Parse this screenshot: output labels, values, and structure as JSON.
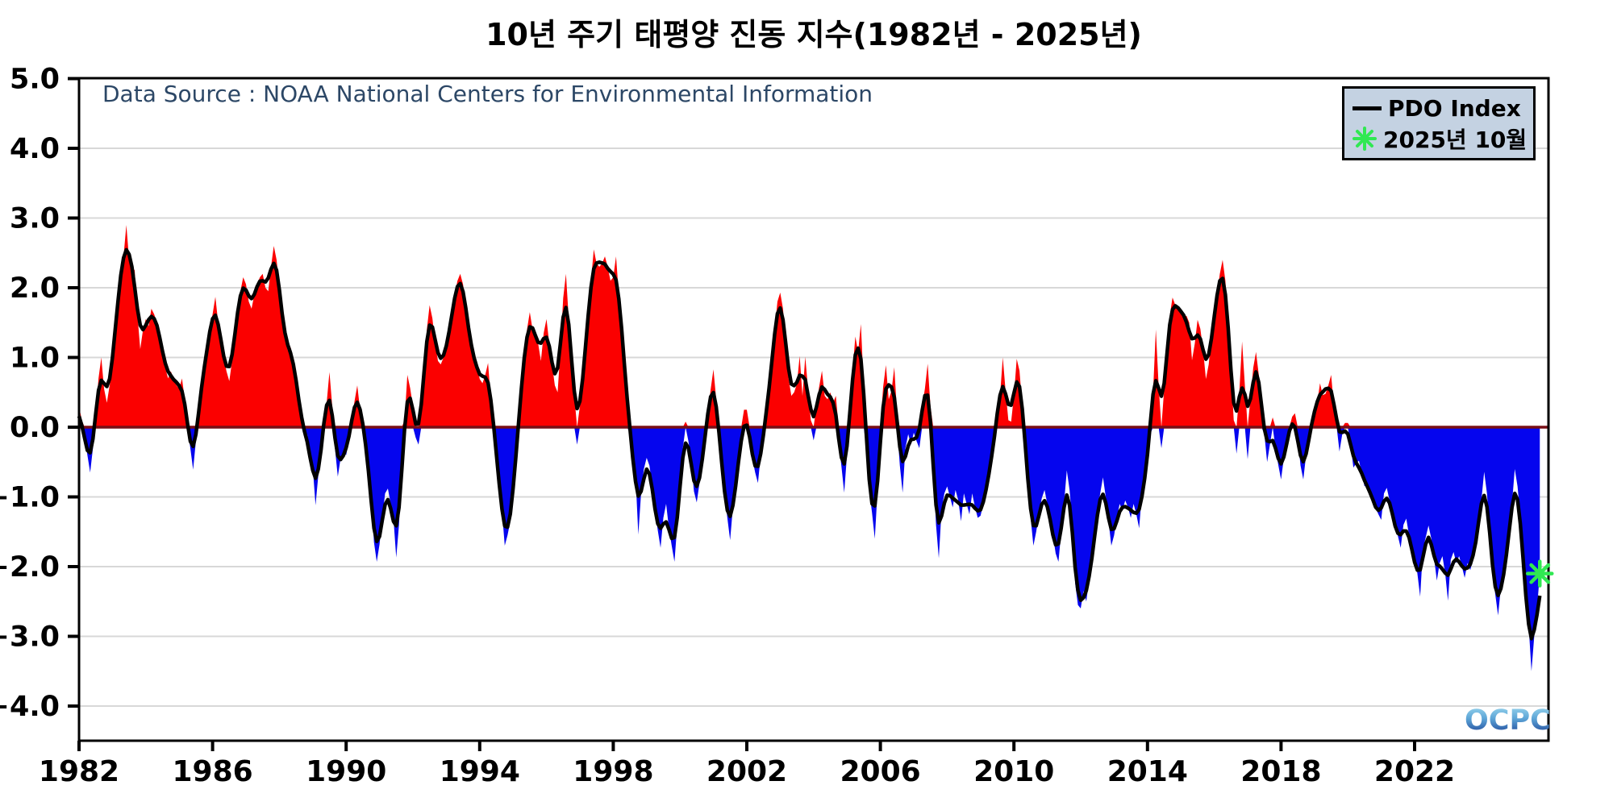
{
  "title": "10년 주기 태평양 진동 지수(1982년 - 2025년)",
  "annotations": {
    "data_source": "Data Source : NOAA National Centers for Environmental Information",
    "watermark": "OCPC"
  },
  "legend": {
    "line_label": "PDO Index",
    "marker_label": "2025년 10월"
  },
  "colors": {
    "positive_fill": "#fb0000",
    "negative_fill": "#0505ee",
    "line": "#000000",
    "zero_line": "#780f16",
    "marker_green": "#30e852",
    "legend_bg": "#c4d2e2",
    "source_text": "#2c4766",
    "grid": "#d8d8d8",
    "axis": "#000000"
  },
  "chart_data": {
    "type": "area",
    "title": "10년 주기 태평양 진동 지수(1982년 - 2025년)",
    "xlabel": "",
    "ylabel": "",
    "x_start": "1982-01",
    "x_end": "2025-10",
    "x_ticks": [
      1982,
      1986,
      1990,
      1994,
      1998,
      2002,
      2006,
      2010,
      2014,
      2018,
      2022
    ],
    "y_ticks": [
      {
        "v": 5,
        "label": "5.0"
      },
      {
        "v": 4,
        "label": "4.0"
      },
      {
        "v": 3,
        "label": "3.0"
      },
      {
        "v": 2,
        "label": "2.0"
      },
      {
        "v": 1,
        "label": "1.0"
      },
      {
        "v": 0,
        "label": "0.0"
      },
      {
        "v": -1,
        "label": "−1.0"
      },
      {
        "v": -2,
        "label": "−2.0"
      },
      {
        "v": -3,
        "label": "−3.0"
      },
      {
        "v": -4,
        "label": "−4.0"
      }
    ],
    "ylim": [
      -4.5,
      5.0
    ],
    "grid": true,
    "legend_position": "upper right",
    "last_point": {
      "label": "2025년 10월",
      "date": "2025-10",
      "value": -2.1
    },
    "series": [
      {
        "name": "PDO Index",
        "cadence": "monthly",
        "values": [
          0.3,
          0.1,
          -0.15,
          -0.4,
          -0.65,
          -0.3,
          0.2,
          0.7,
          1.0,
          0.55,
          0.35,
          0.6,
          0.9,
          1.4,
          1.9,
          2.2,
          2.45,
          2.9,
          2.4,
          2.3,
          2.25,
          1.6,
          1.12,
          1.4,
          1.55,
          1.45,
          1.7,
          1.62,
          1.5,
          1.3,
          1.1,
          0.85,
          0.7,
          0.8,
          0.7,
          0.6,
          0.55,
          0.7,
          0.4,
          0.05,
          -0.3,
          -0.61,
          -0.2,
          0.3,
          0.6,
          0.85,
          1.1,
          1.4,
          1.62,
          1.87,
          1.5,
          1.2,
          1.0,
          0.8,
          0.66,
          0.95,
          1.35,
          1.7,
          1.95,
          2.15,
          2.05,
          1.8,
          1.7,
          1.9,
          2.05,
          2.15,
          2.2,
          2.0,
          1.95,
          2.3,
          2.6,
          2.4,
          2.0,
          1.55,
          1.25,
          1.1,
          1.15,
          1.0,
          0.7,
          0.35,
          0.1,
          -0.15,
          -0.1,
          -0.4,
          -0.58,
          -1.12,
          -0.69,
          -0.3,
          0.1,
          0.35,
          0.79,
          0.3,
          -0.31,
          -0.71,
          -0.45,
          -0.35,
          -0.4,
          -0.2,
          0.1,
          0.37,
          0.6,
          0.25,
          0.08,
          -0.2,
          -0.55,
          -1.0,
          -1.65,
          -1.93,
          -1.68,
          -1.3,
          -0.95,
          -0.88,
          -1.1,
          -1.31,
          -1.87,
          -1.4,
          -0.6,
          0.1,
          0.75,
          0.56,
          0.3,
          -0.15,
          -0.25,
          0.2,
          0.8,
          1.4,
          1.75,
          1.56,
          1.2,
          0.95,
          0.9,
          1.0,
          1.1,
          1.35,
          1.6,
          1.9,
          2.1,
          2.2,
          2.05,
          1.75,
          1.35,
          1.12,
          0.95,
          0.9,
          0.69,
          0.63,
          0.75,
          0.92,
          0.4,
          0.05,
          -0.4,
          -0.81,
          -1.2,
          -1.7,
          -1.55,
          -1.35,
          -0.95,
          -0.45,
          0.1,
          0.6,
          1.05,
          1.4,
          1.65,
          1.4,
          1.35,
          1.2,
          0.95,
          1.35,
          1.55,
          1.2,
          0.9,
          0.6,
          0.5,
          1.1,
          1.85,
          2.2,
          1.55,
          0.95,
          0.45,
          -0.25,
          0.3,
          0.7,
          1.1,
          1.6,
          2.1,
          2.55,
          2.35,
          2.3,
          2.35,
          2.45,
          2.3,
          2.1,
          2.15,
          2.45,
          1.9,
          1.45,
          0.9,
          0.35,
          -0.1,
          -0.38,
          -0.7,
          -1.54,
          -0.95,
          -0.6,
          -0.44,
          -0.55,
          -0.85,
          -1.2,
          -1.48,
          -1.73,
          -1.3,
          -1.1,
          -1.45,
          -1.7,
          -1.93,
          -1.4,
          -0.8,
          -0.3,
          0.08,
          -0.2,
          -0.5,
          -0.92,
          -1.08,
          -0.8,
          -0.45,
          -0.15,
          0.2,
          0.54,
          0.83,
          0.4,
          -0.1,
          -0.55,
          -0.95,
          -1.3,
          -1.62,
          -1.15,
          -0.8,
          -0.5,
          -0.24,
          0.25,
          0.25,
          -0.15,
          -0.45,
          -0.65,
          -0.8,
          -0.4,
          -0.1,
          0.25,
          0.48,
          0.9,
          1.4,
          1.8,
          1.93,
          1.7,
          1.2,
          0.7,
          0.45,
          0.5,
          0.62,
          1.02,
          0.45,
          1.01,
          0.55,
          0.1,
          -0.19,
          0.3,
          0.58,
          0.81,
          0.45,
          0.4,
          0.5,
          0.35,
          0.45,
          -0.2,
          -0.56,
          -0.94,
          -0.4,
          0.2,
          0.8,
          1.3,
          1.08,
          1.48,
          0.6,
          -0.3,
          -0.9,
          -1.23,
          -1.6,
          -0.9,
          -0.2,
          0.58,
          0.89,
          0.4,
          0.52,
          0.86,
          0.2,
          -0.55,
          -0.94,
          -0.3,
          -0.1,
          -0.25,
          -0.08,
          -0.2,
          -0.3,
          0.3,
          0.55,
          0.91,
          0.3,
          -0.6,
          -1.4,
          -1.88,
          -1.18,
          -0.95,
          -0.85,
          -1.0,
          -1.15,
          -0.9,
          -1.05,
          -1.35,
          -0.95,
          -1.1,
          -1.25,
          -0.95,
          -1.15,
          -1.3,
          -1.27,
          -1.1,
          -0.9,
          -0.7,
          -0.45,
          -0.15,
          0.2,
          0.45,
          1.0,
          0.52,
          0.1,
          0.08,
          0.45,
          0.98,
          0.81,
          0.3,
          -0.2,
          -0.75,
          -1.3,
          -1.7,
          -1.5,
          -1.25,
          -1.02,
          -0.9,
          -1.1,
          -1.3,
          -1.55,
          -1.81,
          -1.93,
          -1.5,
          -1.1,
          -0.62,
          -0.9,
          -1.4,
          -2.24,
          -2.55,
          -2.6,
          -2.35,
          -2.5,
          -2.2,
          -1.9,
          -1.55,
          -1.25,
          -0.95,
          -0.72,
          -1.0,
          -1.35,
          -1.7,
          -1.55,
          -1.3,
          -1.1,
          -1.2,
          -1.05,
          -1.15,
          -1.3,
          -1.1,
          -1.25,
          -1.45,
          -0.95,
          -0.75,
          -0.45,
          -0.1,
          0.5,
          1.4,
          0.6,
          -0.3,
          0.55,
          1.2,
          1.6,
          1.86,
          1.75,
          1.7,
          1.7,
          1.55,
          1.6,
          1.5,
          0.96,
          1.2,
          1.54,
          1.41,
          1.1,
          0.69,
          0.9,
          1.3,
          1.6,
          1.9,
          2.2,
          2.4,
          2.1,
          1.5,
          0.8,
          0.1,
          -0.38,
          0.5,
          1.23,
          0.6,
          -0.46,
          0.4,
          0.85,
          1.08,
          0.75,
          0.3,
          -0.1,
          -0.5,
          -0.25,
          0.14,
          -0.3,
          -0.54,
          -0.75,
          -0.45,
          -0.2,
          -0.05,
          0.15,
          0.2,
          -0.15,
          -0.55,
          -0.75,
          -0.4,
          -0.15,
          0.1,
          0.2,
          0.35,
          0.63,
          0.46,
          0.48,
          0.6,
          0.75,
          0.3,
          0.15,
          -0.35,
          -0.1,
          0.06,
          0.06,
          -0.25,
          -0.58,
          -0.52,
          -0.48,
          -0.66,
          -0.85,
          -0.8,
          -0.92,
          -1.05,
          -1.16,
          -1.25,
          -1.33,
          -0.95,
          -0.87,
          -1.05,
          -1.25,
          -1.45,
          -1.56,
          -1.73,
          -1.4,
          -1.31,
          -1.55,
          -1.85,
          -1.85,
          -2.1,
          -2.43,
          -1.75,
          -1.58,
          -1.41,
          -1.6,
          -1.88,
          -2.2,
          -1.95,
          -1.85,
          -2.1,
          -2.49,
          -1.9,
          -1.79,
          -1.95,
          -1.85,
          -2.0,
          -2.16,
          -1.95,
          -2.05,
          -1.9,
          -1.7,
          -1.4,
          -1.05,
          -0.64,
          -0.95,
          -1.5,
          -2.1,
          -2.4,
          -2.7,
          -2.3,
          -2.12,
          -1.9,
          -1.55,
          -1.1,
          -0.6,
          -0.85,
          -1.3,
          -1.9,
          -2.5,
          -2.85,
          -3.5,
          -3.0,
          -2.6,
          -2.1
        ]
      }
    ]
  }
}
